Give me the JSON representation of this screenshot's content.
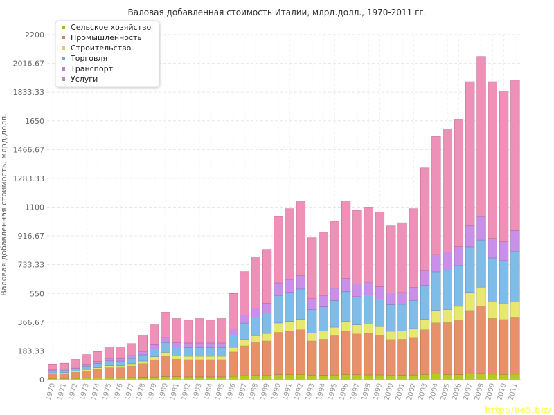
{
  "chart_data": {
    "type": "bar",
    "stacked": true,
    "title": "Валовая добавленная стоимость Италии, млрд.долл., 1970-2011 гг.",
    "xlabel": "",
    "ylabel": "Валовая добавленная стоимость, млрд.долл.",
    "ylim": [
      0,
      2200
    ],
    "yticks": [
      "0",
      "183.33",
      "366.67",
      "550",
      "733.33",
      "916.67",
      "1100",
      "1283.33",
      "1466.67",
      "1650",
      "1833.33",
      "2016.67",
      "2200"
    ],
    "grid": true,
    "legend_position": "top-left",
    "categories": [
      "1970",
      "1971",
      "1972",
      "1973",
      "1974",
      "1975",
      "1976",
      "1977",
      "1978",
      "1979",
      "1980",
      "1981",
      "1982",
      "1983",
      "1984",
      "1985",
      "1986",
      "1987",
      "1988",
      "1989",
      "1990",
      "1991",
      "1992",
      "1993",
      "1994",
      "1995",
      "1996",
      "1997",
      "1998",
      "1999",
      "2000",
      "2001",
      "2002",
      "2003",
      "2004",
      "2005",
      "2006",
      "2007",
      "2008",
      "2009",
      "2010",
      "2011"
    ],
    "series": [
      {
        "name": "Сельское хозяйство",
        "color": "#b5cc1f",
        "values": [
          8,
          8,
          9,
          10,
          11,
          12,
          12,
          13,
          15,
          17,
          20,
          19,
          18,
          18,
          18,
          18,
          22,
          26,
          27,
          27,
          32,
          34,
          34,
          27,
          28,
          30,
          34,
          32,
          31,
          31,
          27,
          28,
          30,
          34,
          38,
          34,
          33,
          37,
          40,
          36,
          34,
          36
        ]
      },
      {
        "name": "Промышленность",
        "color": "#e8906a",
        "values": [
          30,
          32,
          38,
          46,
          55,
          65,
          65,
          75,
          88,
          110,
          130,
          112,
          110,
          110,
          110,
          110,
          155,
          190,
          210,
          220,
          270,
          275,
          285,
          220,
          230,
          250,
          275,
          260,
          265,
          250,
          230,
          230,
          240,
          285,
          325,
          330,
          345,
          405,
          430,
          355,
          350,
          360
        ]
      },
      {
        "name": "Строительство",
        "color": "#e8e870",
        "values": [
          6,
          6,
          7,
          9,
          11,
          13,
          12,
          14,
          16,
          20,
          25,
          22,
          22,
          22,
          22,
          22,
          30,
          40,
          44,
          48,
          60,
          63,
          67,
          50,
          52,
          55,
          62,
          58,
          59,
          58,
          52,
          53,
          56,
          67,
          80,
          84,
          90,
          115,
          120,
          105,
          100,
          100
        ]
      },
      {
        "name": "Торговля",
        "color": "#80bce8",
        "values": [
          14,
          15,
          18,
          22,
          26,
          30,
          30,
          34,
          40,
          50,
          62,
          56,
          56,
          56,
          56,
          56,
          78,
          105,
          118,
          130,
          175,
          185,
          192,
          150,
          155,
          170,
          190,
          180,
          185,
          175,
          170,
          170,
          180,
          215,
          245,
          250,
          260,
          290,
          300,
          280,
          275,
          320
        ]
      },
      {
        "name": "Транспорт",
        "color": "#c890e8",
        "values": [
          8,
          8,
          10,
          12,
          14,
          16,
          16,
          18,
          21,
          26,
          32,
          28,
          28,
          28,
          28,
          28,
          40,
          52,
          58,
          62,
          80,
          82,
          85,
          70,
          72,
          78,
          85,
          80,
          82,
          80,
          75,
          75,
          82,
          95,
          110,
          115,
          120,
          135,
          150,
          125,
          120,
          135
        ]
      },
      {
        "name": "Услуги",
        "color": "#ee90b8",
        "values": [
          34,
          36,
          48,
          61,
          63,
          74,
          75,
          76,
          105,
          127,
          161,
          153,
          146,
          156,
          146,
          156,
          225,
          276,
          325,
          343,
          423,
          451,
          477,
          388,
          403,
          427,
          494,
          470,
          478,
          476,
          426,
          444,
          502,
          654,
          752,
          786,
          812,
          918,
          1020,
          999,
          961,
          959
        ]
      }
    ]
  },
  "watermark": "http://be5.biz/"
}
